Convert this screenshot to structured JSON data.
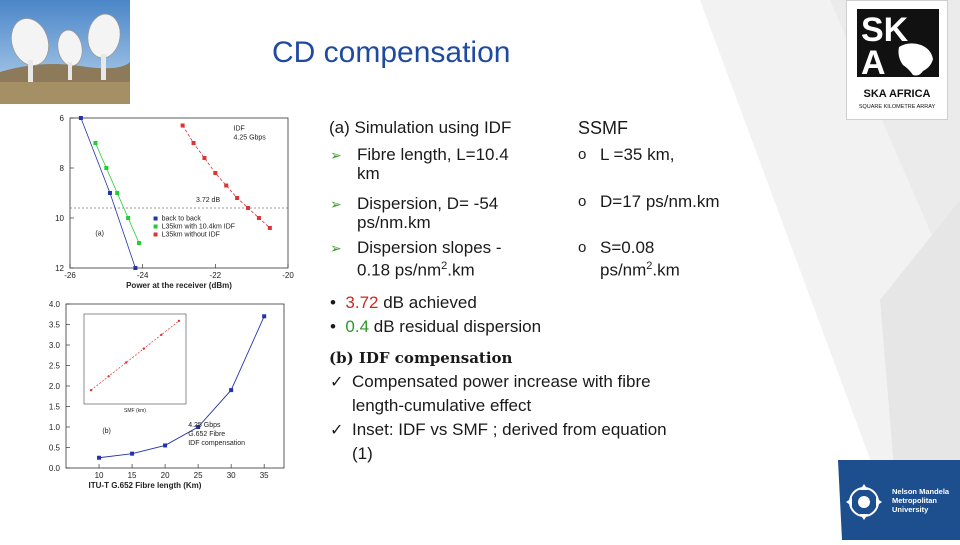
{
  "title": "CD compensation",
  "sim": {
    "heading": "(a) Simulation using IDF",
    "items": [
      {
        "text_a": "Fibre length, L=10.4",
        "text_b": "km"
      },
      {
        "text_a": "Dispersion, D= -54",
        "text_b": "ps/nm.km"
      },
      {
        "text_a": "Dispersion slopes -",
        "text_b1": "0.18 ps/nm",
        "sup": "2",
        "text_b2": ".km"
      }
    ]
  },
  "ssmf": {
    "heading": "SSMF",
    "items": [
      {
        "text": "L =35 km,"
      },
      {
        "text": "D=17 ps/nm.km"
      },
      {
        "text_a": "S=0.08",
        "text_b1": "ps/nm",
        "sup": "2",
        "text_b2": ".km"
      }
    ]
  },
  "results": [
    {
      "value": "3.72",
      "rest": " dB achieved"
    },
    {
      "value": "0.4",
      "rest": " dB residual dispersion"
    }
  ],
  "idf": {
    "heading": "(b) IDF compensation",
    "items": [
      {
        "line1": "Compensated power increase with fibre",
        "line2": "length-cumulative effect"
      },
      {
        "line1": "Inset: IDF vs SMF ; derived from equation",
        "line2": "(1)"
      }
    ]
  },
  "logos": {
    "ska_top": "SK",
    "ska_bottom": "A",
    "ska_name": "SKA AFRICA",
    "ska_tag": "SQUARE KILOMETRE ARRAY",
    "nmmu_1": "Nelson Mandela",
    "nmmu_2": "Metropolitan",
    "nmmu_3": "University"
  },
  "colors": {
    "title": "#1f4aa0",
    "accent_red": "#cc2a1f",
    "accent_green": "#2e9a2a",
    "nmmu_blue": "#1d4f8f"
  },
  "chart_data": [
    {
      "type": "line",
      "title": "",
      "xlabel": "Power at the receiver (dBm)",
      "ylabel": "",
      "xlim": [
        -26,
        -20
      ],
      "ylim": [
        12,
        6
      ],
      "xticks": [
        "-26",
        "-24",
        "-22",
        "-20"
      ],
      "yticks": [
        "6",
        "8",
        "10",
        "12"
      ],
      "panel_label": "(a)",
      "annotation_idf": "IDF",
      "annotation_rate": "4.25 Gbps",
      "annotation_gain": "3.72 dB",
      "legend": [
        "back to back",
        "L35km with 10.4km IDF",
        "L35km without IDF"
      ],
      "series": [
        {
          "name": "back to back",
          "color": "#2233aa",
          "x": [
            -25.7,
            -24.9,
            -24.2
          ],
          "y": [
            6.0,
            9.0,
            12.0
          ]
        },
        {
          "name": "L35km with 10.4km IDF",
          "color": "#22cc33",
          "x": [
            -25.3,
            -25.0,
            -24.7,
            -24.4,
            -24.1
          ],
          "y": [
            7.0,
            8.0,
            9.0,
            10.0,
            11.0
          ]
        },
        {
          "name": "L35km without IDF",
          "color": "#dd3333",
          "x": [
            -22.9,
            -22.6,
            -22.3,
            -22.0,
            -21.7,
            -21.4,
            -21.1,
            -20.8,
            -20.5
          ],
          "y": [
            6.3,
            7.0,
            7.6,
            8.2,
            8.7,
            9.2,
            9.6,
            10.0,
            10.4
          ]
        }
      ]
    },
    {
      "type": "line",
      "title": "",
      "xlabel": "ITU-T G.652 Fibre length (Km)",
      "ylabel": "",
      "xlim": [
        5,
        38
      ],
      "ylim": [
        0,
        4
      ],
      "xticks": [
        "10",
        "15",
        "20",
        "25",
        "30",
        "35"
      ],
      "yticks": [
        "0.0",
        "0.5",
        "1.0",
        "1.5",
        "2.0",
        "2.5",
        "3.0",
        "3.5",
        "4.0"
      ],
      "panel_label": "(b)",
      "annotation_rate": "4.25 Gbps",
      "annotation_fibre": "G.652 Fibre",
      "annotation_comp": "IDF compensation",
      "series": [
        {
          "name": "IDF compensation",
          "color": "#2233aa",
          "x": [
            10,
            15,
            20,
            25,
            30,
            35
          ],
          "y": [
            0.25,
            0.35,
            0.55,
            1.0,
            1.9,
            3.7
          ]
        }
      ],
      "inset": {
        "xlabel": "SMF (km)",
        "series": [
          {
            "color": "#dd3333",
            "x": [
              10,
              15,
              20,
              25,
              30,
              35
            ],
            "y": [
              2,
              4,
              6,
              8,
              10,
              12
            ]
          }
        ]
      }
    }
  ]
}
